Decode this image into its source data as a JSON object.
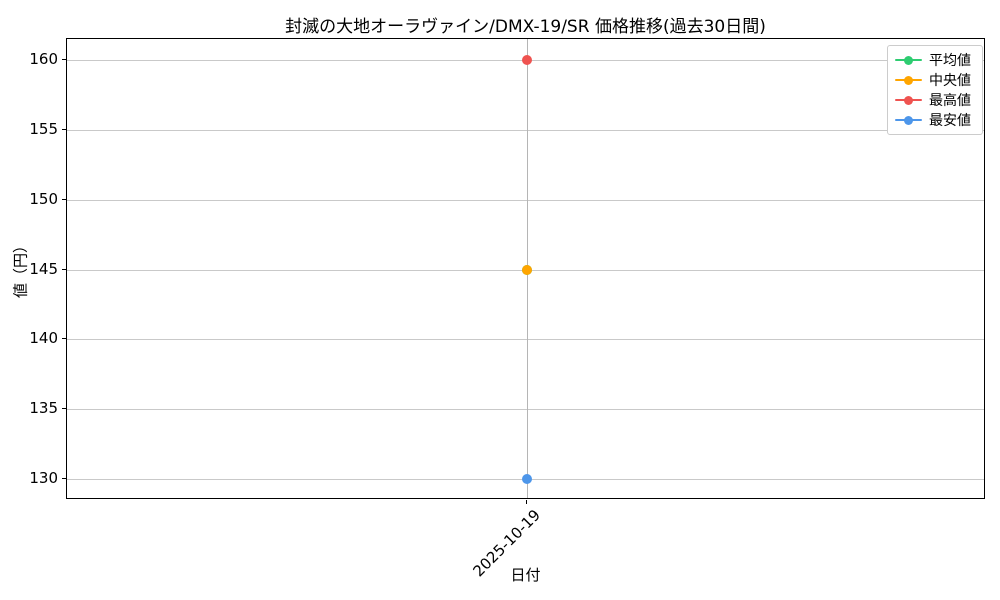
{
  "chart_data": {
    "type": "line",
    "title": "封滅の大地オーラヴァイン/DMX-19/SR 価格推移(過去30日間)",
    "xlabel": "日付",
    "ylabel": "値（円）",
    "x": [
      "2025-10-19"
    ],
    "series": [
      {
        "id": "average",
        "name": "平均値",
        "color": "#2ecc71",
        "values": [
          145
        ]
      },
      {
        "id": "median",
        "name": "中央値",
        "color": "#ffa500",
        "values": [
          145
        ]
      },
      {
        "id": "max",
        "name": "最高値",
        "color": "#ef5350",
        "values": [
          160
        ]
      },
      {
        "id": "min",
        "name": "最安値",
        "color": "#4d96ea",
        "values": [
          130
        ]
      }
    ],
    "yticks": [
      130,
      135,
      140,
      145,
      150,
      155,
      160
    ],
    "ylim": [
      128.5,
      161.5
    ],
    "grid": true,
    "legend_position": "upper right",
    "colors": {
      "grid": "#c9c9c9",
      "axis": "#000000",
      "background": "#ffffff"
    }
  }
}
